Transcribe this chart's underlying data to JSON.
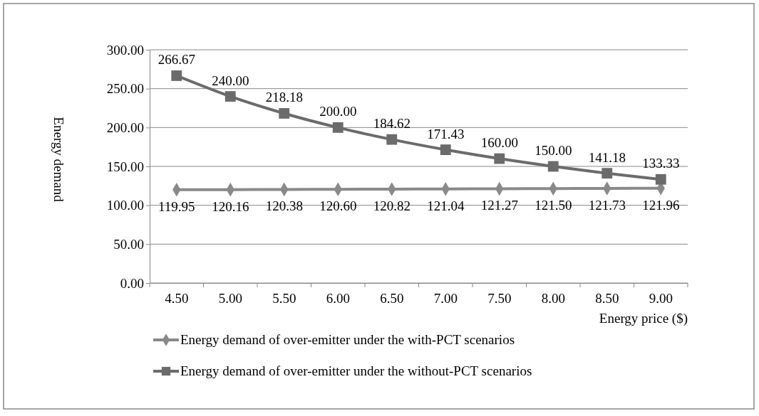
{
  "chart_data": {
    "type": "line",
    "xlabel": "Energy price ($)",
    "ylabel": "Energy  demand",
    "categories": [
      "4.50",
      "5.00",
      "5.50",
      "6.00",
      "6.50",
      "7.00",
      "7.50",
      "8.00",
      "8.50",
      "9.00"
    ],
    "ylim": [
      0,
      300
    ],
    "yticks": [
      {
        "value": 0,
        "label": "0.00"
      },
      {
        "value": 50,
        "label": "50.00"
      },
      {
        "value": 100,
        "label": "100.00"
      },
      {
        "value": 150,
        "label": "150.00"
      },
      {
        "value": 200,
        "label": "200.00"
      },
      {
        "value": 250,
        "label": "250.00"
      },
      {
        "value": 300,
        "label": "300.00"
      }
    ],
    "grid": "y",
    "legend": "bottom",
    "series": [
      {
        "name": "Energy demand of over-emitter under the with-PCT scenarios",
        "color": "#898989",
        "marker": "diamond",
        "values": [
          119.95,
          120.16,
          120.38,
          120.6,
          120.82,
          121.04,
          121.27,
          121.5,
          121.73,
          121.96
        ],
        "value_labels": [
          "119.95",
          "120.16",
          "120.38",
          "120.60",
          "120.82",
          "121.04",
          "121.27",
          "121.50",
          "121.73",
          "121.96"
        ]
      },
      {
        "name": "Energy demand of over-emitter under the without-PCT scenarios",
        "color": "#6b6b6b",
        "marker": "square",
        "values": [
          266.67,
          240.0,
          218.18,
          200.0,
          184.62,
          171.43,
          160.0,
          150.0,
          141.18,
          133.33
        ],
        "value_labels": [
          "266.67",
          "240.00",
          "218.18",
          "200.00",
          "184.62",
          "171.43",
          "160.00",
          "150.00",
          "141.18",
          "133.33"
        ]
      }
    ]
  }
}
